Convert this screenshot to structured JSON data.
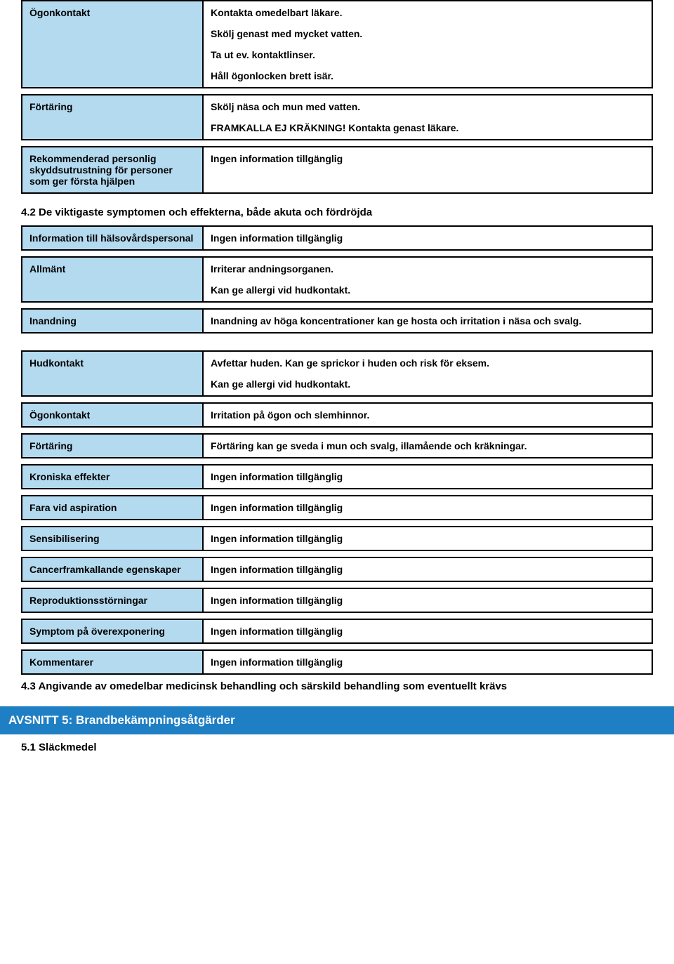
{
  "colors": {
    "label_bg": "#b4daf0",
    "value_bg": "#ffffff",
    "border": "#000000",
    "section_bar_bg": "#1f7fc4",
    "section_bar_text": "#ffffff",
    "text": "#000000"
  },
  "rows_top": [
    {
      "label": "Ögonkontakt",
      "lines": [
        "Kontakta omedelbart läkare.",
        "Skölj genast med mycket vatten.",
        "Ta ut ev. kontaktlinser.",
        "Håll ögonlocken brett isär."
      ]
    },
    {
      "label": "Förtäring",
      "lines": [
        "Skölj näsa och mun med vatten.",
        "FRAMKALLA EJ KRÄKNING! Kontakta genast läkare."
      ]
    },
    {
      "label": "Rekommenderad personlig skyddsutrustning för personer som ger första hjälpen",
      "lines": [
        "Ingen information tillgänglig"
      ]
    }
  ],
  "section_4_2": "4.2 De viktigaste symptomen och effekterna, både akuta och fördröjda",
  "rows_4_2_a": [
    {
      "label": "Information till hälsovårdspersonal",
      "lines": [
        "Ingen information tillgänglig"
      ]
    },
    {
      "label": "Allmänt",
      "lines": [
        "Irriterar andningsorganen.",
        "Kan ge allergi vid hudkontakt."
      ]
    },
    {
      "label": "Inandning",
      "lines": [
        "Inandning av höga koncentrationer kan ge hosta och irritation i näsa och svalg."
      ]
    }
  ],
  "rows_4_2_b": [
    {
      "label": "Hudkontakt",
      "lines": [
        "Avfettar huden. Kan ge sprickor i huden och risk för eksem.",
        "Kan ge allergi vid hudkontakt."
      ]
    },
    {
      "label": "Ögonkontakt",
      "lines": [
        "Irritation på ögon och slemhinnor."
      ]
    },
    {
      "label": "Förtäring",
      "lines": [
        "Förtäring kan ge sveda i mun och svalg, illamående och kräkningar."
      ]
    },
    {
      "label": "Kroniska effekter",
      "lines": [
        "Ingen information tillgänglig"
      ]
    },
    {
      "label": "Fara vid aspiration",
      "lines": [
        "Ingen information tillgänglig"
      ]
    },
    {
      "label": "Sensibilisering",
      "lines": [
        "Ingen information tillgänglig"
      ]
    },
    {
      "label": "Cancerframkallande egenskaper",
      "lines": [
        "Ingen information tillgänglig"
      ]
    },
    {
      "label": "Reproduktionsstörningar",
      "lines": [
        "Ingen information tillgänglig"
      ]
    },
    {
      "label": "Symptom på överexponering",
      "lines": [
        "Ingen information tillgänglig"
      ]
    },
    {
      "label": "Kommentarer",
      "lines": [
        "Ingen information tillgänglig"
      ]
    }
  ],
  "section_4_3": "4.3 Angivande av omedelbar medicinsk behandling och särskild behandling som eventuellt krävs",
  "section_5_title": "AVSNITT 5: Brandbekämpningsåtgärder",
  "section_5_1": "5.1 Släckmedel"
}
